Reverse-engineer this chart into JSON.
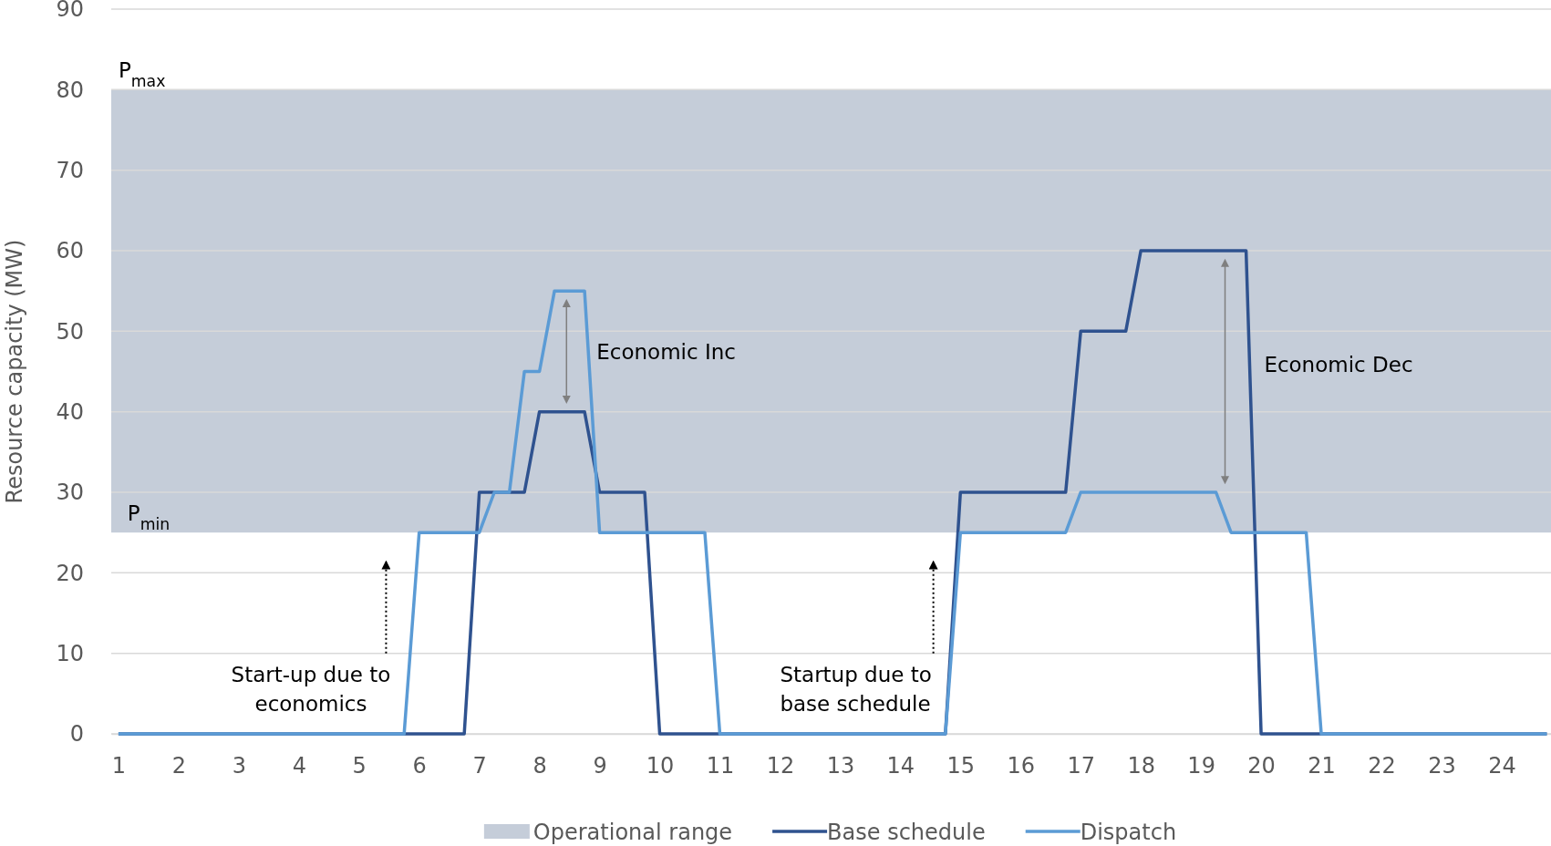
{
  "chart_data": {
    "type": "line",
    "ylabel": "Resource capacity (MW)",
    "xlim": [
      0.88,
      24.82
    ],
    "xticks": [
      1,
      2,
      3,
      4,
      5,
      6,
      7,
      8,
      9,
      10,
      11,
      12,
      13,
      14,
      15,
      16,
      17,
      18,
      19,
      20,
      21,
      22,
      23,
      24
    ],
    "ylim": [
      0,
      90
    ],
    "yticks": [
      0,
      10,
      20,
      30,
      40,
      50,
      60,
      70,
      80,
      90
    ],
    "grid": "y",
    "legend": "bottom",
    "line_style": "solid",
    "marker": "none",
    "bands": [
      {
        "axis": "y",
        "from": 25,
        "to": 80,
        "label": "Operational range",
        "color": "#c5cdd9"
      }
    ],
    "series": [
      {
        "name": "Base schedule",
        "color": "#2f528f",
        "x": [
          1,
          6.75,
          7,
          7.75,
          8,
          8.75,
          9,
          9.75,
          10,
          14.75,
          15,
          16.75,
          17,
          17.75,
          18,
          19.75,
          20,
          24.75
        ],
        "values": [
          0,
          0,
          30,
          30,
          40,
          40,
          30,
          30,
          0,
          0,
          30,
          30,
          50,
          50,
          60,
          60,
          0,
          0
        ]
      },
      {
        "name": "Dispatch",
        "color": "#5b9bd5",
        "x": [
          1,
          5.75,
          6,
          7,
          7.25,
          7.5,
          7.75,
          8,
          8.25,
          8.75,
          9,
          10.75,
          11,
          14.75,
          15,
          16.75,
          17,
          19.25,
          19.5,
          20.75,
          21,
          24.75
        ],
        "values": [
          0,
          0,
          25,
          25,
          30,
          30,
          45,
          45,
          55,
          55,
          25,
          25,
          0,
          0,
          25,
          25,
          30,
          30,
          25,
          25,
          0,
          0
        ]
      }
    ],
    "annotations": [
      "P$_{max}$",
      "P$_{min}$",
      "Economic Inc",
      "Economic Dec",
      "Start-up due to\neconomics",
      "Startup due to\nbase schedule"
    ]
  }
}
